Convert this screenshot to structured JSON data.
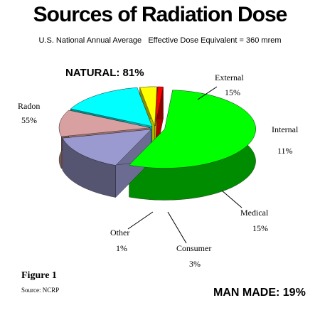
{
  "chart_data": {
    "type": "pie3d",
    "title": "Sources of Radiation Dose",
    "subtitle": "U.S. National Annual Average   Effective Dose Equivalent = 360 mrem",
    "categories": [
      "Radon",
      "External",
      "Internal",
      "Medical",
      "Consumer",
      "Other"
    ],
    "values": [
      55,
      15,
      11,
      15,
      3,
      1
    ],
    "value_labels": [
      "55%",
      "15%",
      "11%",
      "15%",
      "3%",
      "1%"
    ],
    "colors": [
      "#00ff00",
      "#9a9ad0",
      "#d8a0a0",
      "#00ffff",
      "#ffff00",
      "#ff0000"
    ],
    "annotations": [
      "NATURAL: 81%",
      "MAN MADE: 19%",
      "Figure 1",
      "Source: NCRP"
    ]
  }
}
